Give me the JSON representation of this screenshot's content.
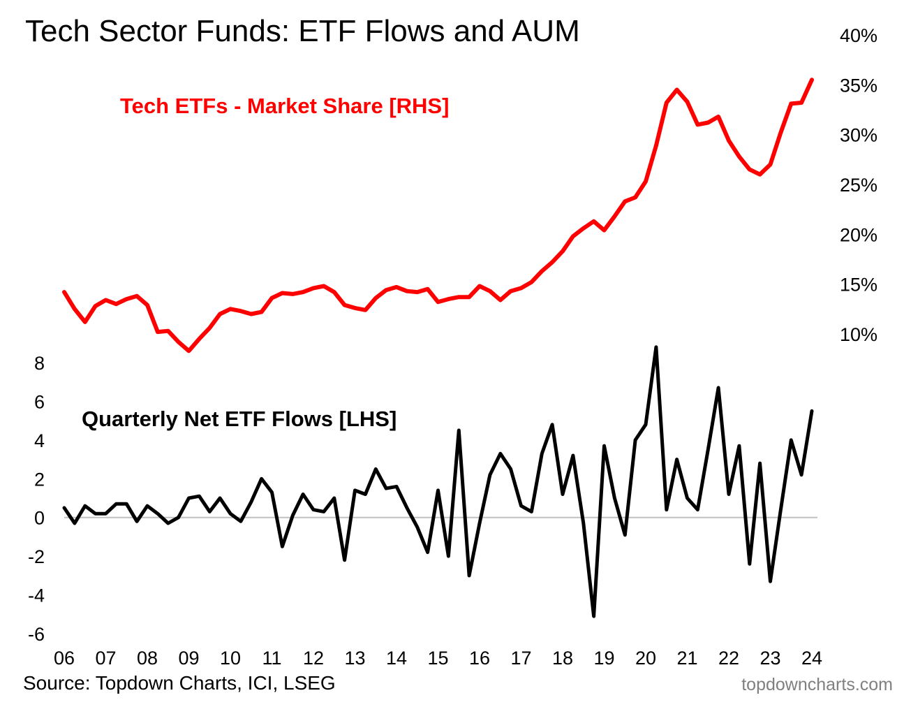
{
  "title": "Tech Sector Funds: ETF Flows and AUM",
  "source": "Source: Topdown Charts, ICI, LSEG",
  "watermark": "topdowncharts.com",
  "colors": {
    "market_share": "#ff0000",
    "flows": "#000000",
    "zero_line": "#c0c0c0"
  },
  "chart_data": [
    {
      "type": "line",
      "title": "",
      "series": [
        {
          "name": "Tech ETFs - Market Share [RHS]",
          "axis": "right",
          "x": [
            2006.0,
            2006.25,
            2006.5,
            2006.75,
            2007.0,
            2007.25,
            2007.5,
            2007.75,
            2008.0,
            2008.25,
            2008.5,
            2008.75,
            2009.0,
            2009.25,
            2009.5,
            2009.75,
            2010.0,
            2010.25,
            2010.5,
            2010.75,
            2011.0,
            2011.25,
            2011.5,
            2011.75,
            2012.0,
            2012.25,
            2012.5,
            2012.75,
            2013.0,
            2013.25,
            2013.5,
            2013.75,
            2014.0,
            2014.25,
            2014.5,
            2014.75,
            2015.0,
            2015.25,
            2015.5,
            2015.75,
            2016.0,
            2016.25,
            2016.5,
            2016.75,
            2017.0,
            2017.25,
            2017.5,
            2017.75,
            2018.0,
            2018.25,
            2018.5,
            2018.75,
            2019.0,
            2019.25,
            2019.5,
            2019.75,
            2020.0,
            2020.25,
            2020.5,
            2020.75,
            2021.0,
            2021.25,
            2021.5,
            2021.75,
            2022.0,
            2022.25,
            2022.5,
            2022.75,
            2023.0,
            2023.25,
            2023.5,
            2023.75,
            2024.0
          ],
          "values": [
            14.2,
            12.5,
            11.2,
            12.8,
            13.4,
            13.0,
            13.5,
            13.8,
            12.9,
            10.2,
            10.3,
            9.2,
            8.3,
            9.5,
            10.6,
            12.0,
            12.5,
            12.3,
            12.0,
            12.2,
            13.6,
            14.1,
            14.0,
            14.2,
            14.6,
            14.8,
            14.2,
            12.9,
            12.6,
            12.4,
            13.6,
            14.4,
            14.7,
            14.3,
            14.2,
            14.5,
            13.2,
            13.5,
            13.7,
            13.7,
            14.8,
            14.3,
            13.4,
            14.3,
            14.6,
            15.2,
            16.3,
            17.2,
            18.3,
            19.8,
            20.6,
            21.3,
            20.4,
            21.8,
            23.3,
            23.7,
            25.3,
            28.9,
            33.2,
            34.5,
            33.3,
            31.0,
            31.2,
            31.8,
            29.4,
            27.8,
            26.5,
            26.0,
            27.0,
            30.2,
            33.1,
            33.2,
            35.5
          ]
        },
        {
          "name": "Quarterly Net ETF Flows [LHS]",
          "axis": "left",
          "x": [
            2006.0,
            2006.25,
            2006.5,
            2006.75,
            2007.0,
            2007.25,
            2007.5,
            2007.75,
            2008.0,
            2008.25,
            2008.5,
            2008.75,
            2009.0,
            2009.25,
            2009.5,
            2009.75,
            2010.0,
            2010.25,
            2010.5,
            2010.75,
            2011.0,
            2011.25,
            2011.5,
            2011.75,
            2012.0,
            2012.25,
            2012.5,
            2012.75,
            2013.0,
            2013.25,
            2013.5,
            2013.75,
            2014.0,
            2014.25,
            2014.5,
            2014.75,
            2015.0,
            2015.25,
            2015.5,
            2015.75,
            2016.0,
            2016.25,
            2016.5,
            2016.75,
            2017.0,
            2017.25,
            2017.5,
            2017.75,
            2018.0,
            2018.25,
            2018.5,
            2018.75,
            2019.0,
            2019.25,
            2019.5,
            2019.75,
            2020.0,
            2020.25,
            2020.5,
            2020.75,
            2021.0,
            2021.25,
            2021.5,
            2021.75,
            2022.0,
            2022.25,
            2022.5,
            2022.75,
            2023.0,
            2023.25,
            2023.5,
            2023.75,
            2024.0
          ],
          "values": [
            0.5,
            -0.3,
            0.6,
            0.2,
            0.2,
            0.7,
            0.7,
            -0.2,
            0.6,
            0.2,
            -0.3,
            0.0,
            1.0,
            1.1,
            0.3,
            1.0,
            0.2,
            -0.2,
            0.8,
            2.0,
            1.3,
            -1.5,
            0.1,
            1.2,
            0.4,
            0.3,
            1.0,
            -2.2,
            1.4,
            1.2,
            2.5,
            1.5,
            1.6,
            0.5,
            -0.5,
            -1.8,
            1.4,
            -2.0,
            4.5,
            -3.0,
            -0.3,
            2.2,
            3.3,
            2.5,
            0.6,
            0.3,
            3.3,
            4.8,
            1.2,
            3.2,
            -0.3,
            -5.1,
            3.7,
            1.0,
            -0.9,
            4.0,
            4.8,
            8.8,
            0.4,
            3.0,
            1.0,
            0.4,
            3.5,
            6.7,
            1.2,
            3.7,
            -2.4,
            2.8,
            -3.3,
            0.4,
            4.0,
            2.2,
            5.5
          ]
        }
      ],
      "x_ticks": [
        "06",
        "07",
        "08",
        "09",
        "10",
        "11",
        "12",
        "13",
        "14",
        "15",
        "16",
        "17",
        "18",
        "19",
        "20",
        "21",
        "22",
        "23",
        "24"
      ],
      "y_left_ticks": [
        "8",
        "6",
        "4",
        "2",
        "0",
        "-2",
        "-4",
        "-6"
      ],
      "y_right_ticks": [
        "40%",
        "35%",
        "30%",
        "25%",
        "20%",
        "15%",
        "10%"
      ],
      "x_range": [
        2006,
        2024
      ],
      "y_left_range": [
        -6,
        8
      ],
      "y_right_range": [
        10,
        40
      ],
      "grid": false,
      "zero_line": true
    }
  ]
}
